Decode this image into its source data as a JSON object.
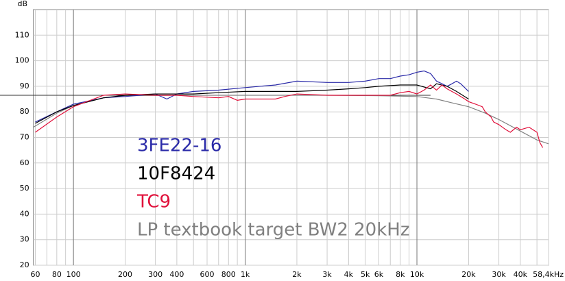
{
  "chart_data": {
    "type": "line",
    "xscale": "log",
    "grid": true,
    "y_axis_label": "dB",
    "xlim": [
      58.4,
      58400
    ],
    "ylim": [
      20,
      120
    ],
    "yticks": [
      20,
      30,
      40,
      50,
      60,
      70,
      80,
      90,
      100,
      110
    ],
    "xticks": [
      60,
      80,
      100,
      200,
      300,
      400,
      600,
      800,
      {
        "value": 1000,
        "label": "1k"
      },
      {
        "value": 2000,
        "label": "2k"
      },
      {
        "value": 3000,
        "label": "3k"
      },
      {
        "value": 4000,
        "label": "4k"
      },
      {
        "value": 5000,
        "label": "5k"
      },
      {
        "value": 6000,
        "label": "6k"
      },
      {
        "value": 8000,
        "label": "8k"
      },
      {
        "value": 10000,
        "label": "10k"
      },
      {
        "value": 20000,
        "label": "20k"
      },
      {
        "value": 30000,
        "label": "30k"
      },
      {
        "value": 40000,
        "label": "40k"
      },
      {
        "value": 58400,
        "label": "58,4kHz"
      }
    ],
    "x_minor_grid": [
      70,
      90,
      500,
      700,
      900,
      7000,
      9000,
      50000
    ],
    "x_major_grid": [
      100,
      1000,
      10000
    ],
    "reference_line": 86.5,
    "series": [
      {
        "name": "3FE22-16",
        "color": "#2a2aa8",
        "x": [
          60,
          80,
          100,
          150,
          200,
          300,
          350,
          400,
          500,
          700,
          1000,
          1500,
          2000,
          3000,
          4000,
          5000,
          6000,
          7000,
          8000,
          9000,
          10000,
          11000,
          12000,
          13000,
          14000,
          15000,
          16000,
          17000,
          18000,
          20000
        ],
        "values": [
          76,
          80,
          83,
          85.5,
          86,
          87,
          85,
          87,
          88,
          88.5,
          89.5,
          90.5,
          92,
          91.5,
          91.5,
          92,
          93,
          93,
          94,
          94.5,
          95.5,
          96,
          95,
          92,
          91,
          90,
          91,
          92,
          91,
          88
        ]
      },
      {
        "name": "10F8424",
        "color": "#000000",
        "x": [
          60,
          80,
          100,
          150,
          200,
          300,
          400,
          500,
          700,
          1000,
          1500,
          2000,
          3000,
          4000,
          5000,
          6000,
          8000,
          10000,
          12000,
          13000,
          15000,
          17000,
          20000
        ],
        "values": [
          75.5,
          80,
          82.5,
          85.5,
          86.5,
          87,
          87,
          87,
          87.5,
          88,
          88,
          88,
          88.5,
          89,
          89.5,
          90,
          90.5,
          90.5,
          89,
          91,
          90,
          88,
          85
        ]
      },
      {
        "name": "TC9",
        "color": "#e0103a",
        "x": [
          60,
          80,
          100,
          150,
          200,
          300,
          400,
          500,
          700,
          800,
          900,
          1000,
          1500,
          1700,
          2000,
          3000,
          5000,
          7000,
          8000,
          9000,
          10000,
          11000,
          12000,
          13000,
          14000,
          15000,
          17000,
          19000,
          20000,
          22000,
          24000,
          25000,
          27000,
          28000,
          30000,
          33000,
          35000,
          38000,
          40000,
          45000,
          50000,
          52000,
          54000
        ],
        "values": [
          72,
          78,
          82,
          86.5,
          87,
          86.5,
          86.5,
          86,
          85.5,
          86,
          84.5,
          85,
          85,
          86,
          87,
          86.5,
          86.5,
          86.5,
          87.5,
          88,
          87,
          88.5,
          90.5,
          88.5,
          90.5,
          89,
          87,
          85,
          84,
          83,
          82,
          80,
          78,
          76,
          75,
          73,
          72,
          74,
          73,
          74,
          72,
          68,
          66
        ]
      },
      {
        "name": "LP textbook target BW2 20kHz",
        "color": "#808080",
        "x": [
          58.4,
          80,
          100,
          150,
          200,
          400,
          1000,
          3000,
          6000,
          10000,
          13000,
          16000,
          20000,
          25000,
          30000,
          40000,
          50000,
          58400
        ],
        "values": [
          74,
          79.5,
          82.5,
          85.5,
          86.3,
          86.5,
          86.5,
          86.5,
          86.3,
          86,
          85,
          83.5,
          82,
          79.5,
          77,
          72.5,
          69,
          67.5
        ]
      }
    ]
  }
}
